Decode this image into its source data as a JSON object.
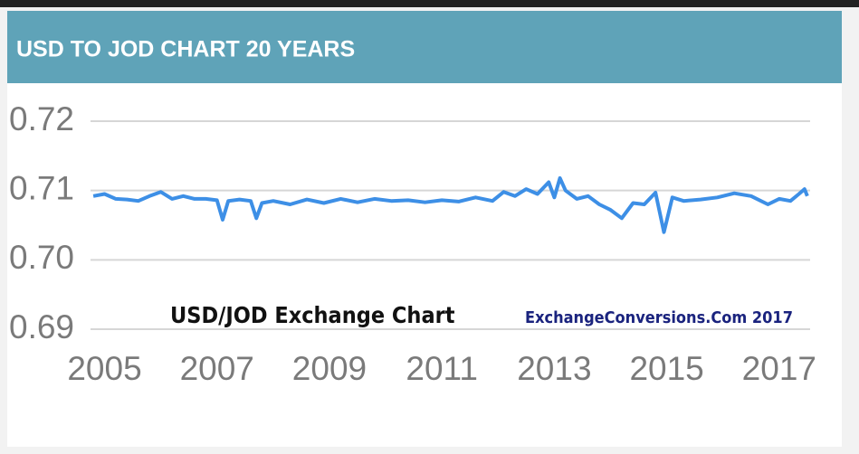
{
  "chart_data": {
    "type": "line",
    "title": "USD TO JOD CHART 20 YEARS",
    "annotations": [
      "USD/JOD Exchange Chart",
      "ExchangeConversions.Com 2017"
    ],
    "color": "#3d8fe6",
    "grid": true,
    "x": [
      2004.8,
      2005.0,
      2005.2,
      2005.4,
      2005.6,
      2005.8,
      2006.0,
      2006.2,
      2006.4,
      2006.6,
      2006.8,
      2007.0,
      2007.1,
      2007.2,
      2007.4,
      2007.6,
      2007.7,
      2007.8,
      2008.0,
      2008.3,
      2008.6,
      2008.9,
      2009.2,
      2009.5,
      2009.8,
      2010.1,
      2010.4,
      2010.7,
      2011.0,
      2011.3,
      2011.6,
      2011.9,
      2012.1,
      2012.3,
      2012.5,
      2012.7,
      2012.9,
      2013.0,
      2013.1,
      2013.2,
      2013.4,
      2013.6,
      2013.8,
      2014.0,
      2014.2,
      2014.4,
      2014.6,
      2014.8,
      2014.95,
      2015.1,
      2015.3,
      2015.6,
      2015.9,
      2016.2,
      2016.5,
      2016.8,
      2017.0,
      2017.2,
      2017.35,
      2017.45,
      2017.5
    ],
    "values": [
      0.7092,
      0.7095,
      0.7088,
      0.7087,
      0.7085,
      0.7092,
      0.7098,
      0.7088,
      0.7092,
      0.7088,
      0.7088,
      0.7086,
      0.7058,
      0.7085,
      0.7087,
      0.7085,
      0.706,
      0.7082,
      0.7085,
      0.708,
      0.7087,
      0.7082,
      0.7088,
      0.7083,
      0.7088,
      0.7085,
      0.7086,
      0.7083,
      0.7086,
      0.7084,
      0.709,
      0.7085,
      0.7098,
      0.7092,
      0.7102,
      0.7095,
      0.7112,
      0.709,
      0.7118,
      0.71,
      0.7088,
      0.7092,
      0.708,
      0.7072,
      0.706,
      0.7082,
      0.708,
      0.7097,
      0.704,
      0.709,
      0.7085,
      0.7087,
      0.709,
      0.7096,
      0.7092,
      0.708,
      0.7088,
      0.7085,
      0.7095,
      0.7102,
      0.7092
    ],
    "xlim": [
      2004.75,
      2017.55
    ],
    "xticks": [
      2005,
      2007,
      2009,
      2011,
      2013,
      2015,
      2017
    ],
    "ylim": [
      0.69,
      0.72
    ],
    "yticks": [
      0.69,
      {
        "value": 0.7,
        "label": "0.70"
      },
      0.71,
      0.72
    ]
  }
}
